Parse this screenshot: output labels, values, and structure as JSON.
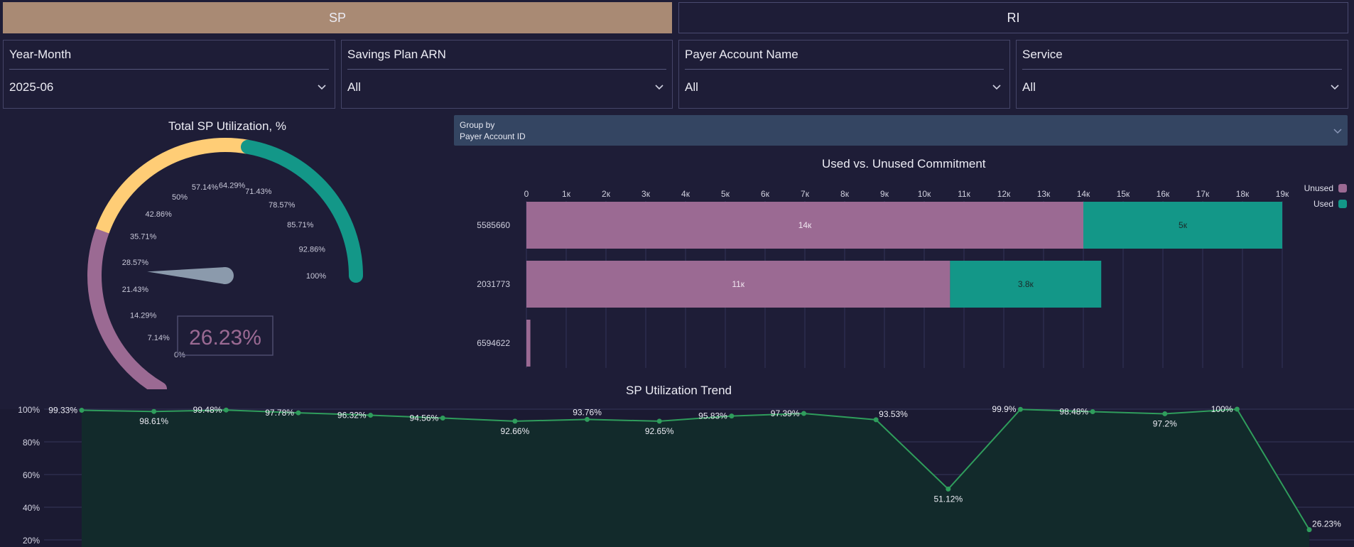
{
  "tabs": [
    {
      "label": "SP",
      "active": true
    },
    {
      "label": "RI",
      "active": false
    }
  ],
  "filters": [
    {
      "label": "Year-Month",
      "value": "2025-06"
    },
    {
      "label": "Savings Plan ARN",
      "value": "All"
    },
    {
      "label": "Payer Account Name",
      "value": "All"
    },
    {
      "label": "Service",
      "value": "All"
    }
  ],
  "group_by": {
    "label": "Group by",
    "value": "Payer Account ID"
  },
  "gauge": {
    "title": "Total SP Utilization, %",
    "value_text": "26.23%",
    "value": 26.23,
    "min": 0,
    "max": 100,
    "ticks": [
      "0%",
      "7.14%",
      "14.29%",
      "21.43%",
      "28.57%",
      "35.71%",
      "42.86%",
      "50%",
      "57.14%",
      "64.29%",
      "71.43%",
      "78.57%",
      "85.71%",
      "92.86%",
      "100%"
    ],
    "bands": [
      {
        "from": 0,
        "to": 33.33,
        "color": "#9b6a93"
      },
      {
        "from": 33.33,
        "to": 66.67,
        "color": "#ffcd76"
      },
      {
        "from": 66.67,
        "to": 100,
        "color": "#139788"
      }
    ],
    "needle_color": "#8b9aac"
  },
  "chart_data": [
    {
      "type": "bar",
      "orientation": "horizontal",
      "stacked": true,
      "title": "Used vs. Unused Commitment",
      "categories": [
        "5585660",
        "2031773",
        "6594622"
      ],
      "xlim": [
        0,
        19000
      ],
      "x_ticks": [
        "0",
        "1к",
        "2к",
        "3к",
        "4к",
        "5к",
        "6к",
        "7к",
        "8к",
        "9к",
        "10к",
        "11к",
        "12к",
        "13к",
        "14к",
        "15к",
        "16к",
        "17к",
        "18к",
        "19к"
      ],
      "series": [
        {
          "name": "Unused",
          "color": "#9b6a93",
          "values": [
            14000,
            10650,
            100
          ],
          "labels": [
            "14к",
            "11к",
            ""
          ]
        },
        {
          "name": "Used",
          "color": "#139788",
          "values": [
            5000,
            3800,
            0
          ],
          "labels": [
            "5к",
            "3.8к",
            ""
          ]
        }
      ],
      "legend_position": "top-right"
    },
    {
      "type": "area",
      "title": "SP Utilization Trend",
      "ylim": [
        20,
        100
      ],
      "y_ticks": [
        "100%",
        "80%",
        "60%",
        "40%",
        "20%"
      ],
      "values": [
        99.33,
        98.61,
        99.48,
        97.78,
        96.32,
        94.56,
        92.66,
        93.76,
        92.65,
        95.83,
        97.39,
        93.53,
        51.12,
        99.9,
        98.48,
        97.2,
        100,
        26.23
      ],
      "labels": [
        "99.33%",
        "98.61%",
        "99.48%",
        "97.78%",
        "96.32%",
        "94.56%",
        "92.66%",
        "93.76%",
        "92.65%",
        "95.83%",
        "97.39%",
        "93.53%",
        "51.12%",
        "99.9%",
        "98.48%",
        "97.2%",
        "100%",
        "26.23%"
      ],
      "label_side": [
        "left",
        "below",
        "left",
        "left",
        "left",
        "left",
        "below",
        "above",
        "below",
        "left",
        "left",
        "right",
        "below",
        "left",
        "left",
        "below",
        "left",
        "right"
      ],
      "line_color": "#2f9d5c",
      "fill_color": "#122a2b"
    }
  ]
}
